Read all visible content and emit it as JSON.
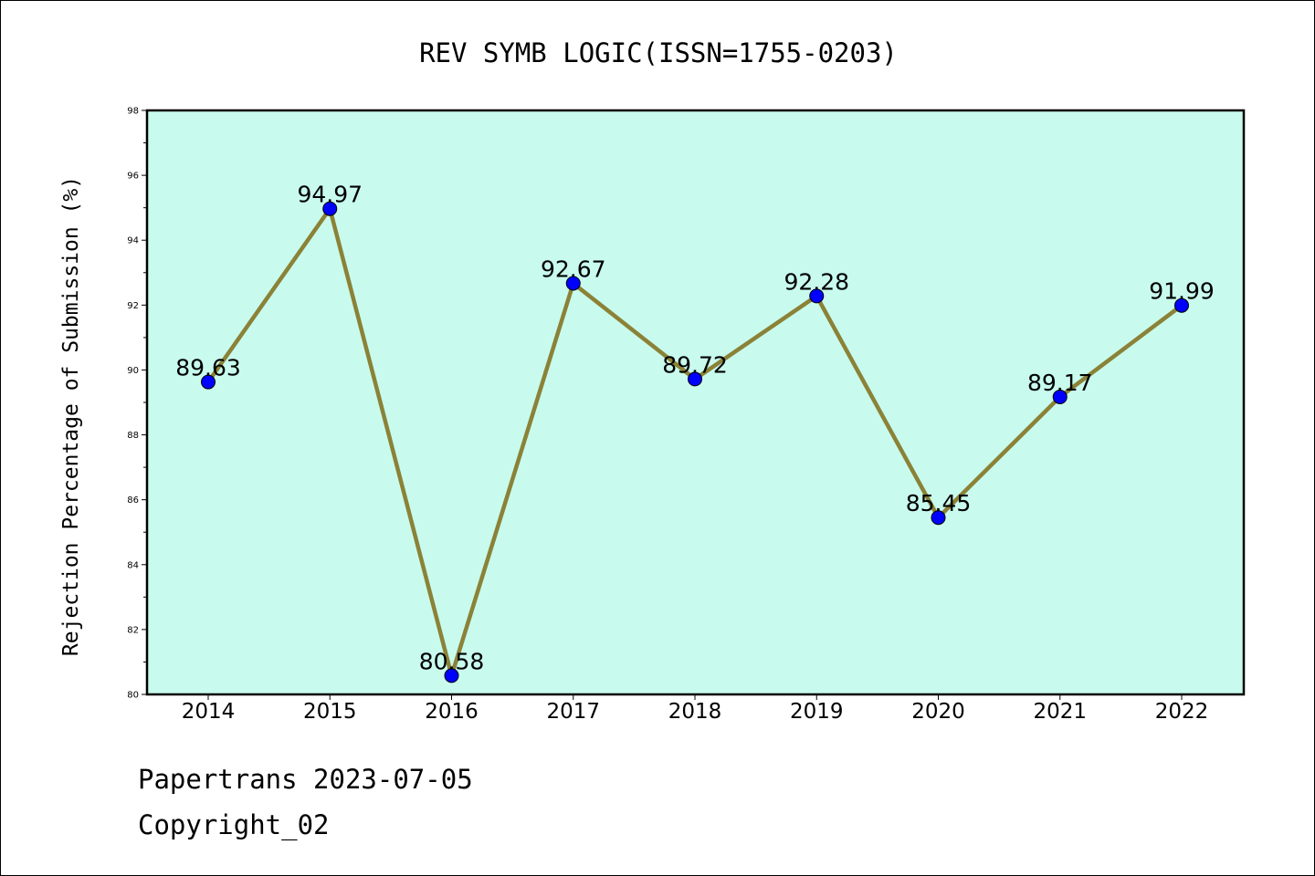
{
  "chart_data": {
    "type": "line",
    "title": "REV SYMB LOGIC(ISSN=1755-0203)",
    "ylabel": "Rejection Percentage of Submission (%)",
    "xlabel": "",
    "categories": [
      "2014",
      "2015",
      "2016",
      "2017",
      "2018",
      "2019",
      "2020",
      "2021",
      "2022"
    ],
    "values": [
      89.63,
      94.97,
      80.58,
      92.67,
      89.72,
      92.28,
      85.45,
      89.17,
      91.99
    ],
    "data_labels": [
      "89.63",
      "94.97",
      "80.58",
      "92.67",
      "89.72",
      "92.28",
      "85.45",
      "89.17",
      "91.99"
    ],
    "ylim": [
      80,
      98
    ],
    "yticks": [
      "80",
      "82",
      "84",
      "86",
      "88",
      "90",
      "92",
      "94",
      "96",
      "98"
    ],
    "plot_background": "#c8fbee",
    "line_color": "#8b8237",
    "marker_color": "#0000ff",
    "grid": false,
    "legend": "none"
  },
  "footer": {
    "line1": "Papertrans 2023-07-05",
    "line2": "Copyright_02"
  }
}
